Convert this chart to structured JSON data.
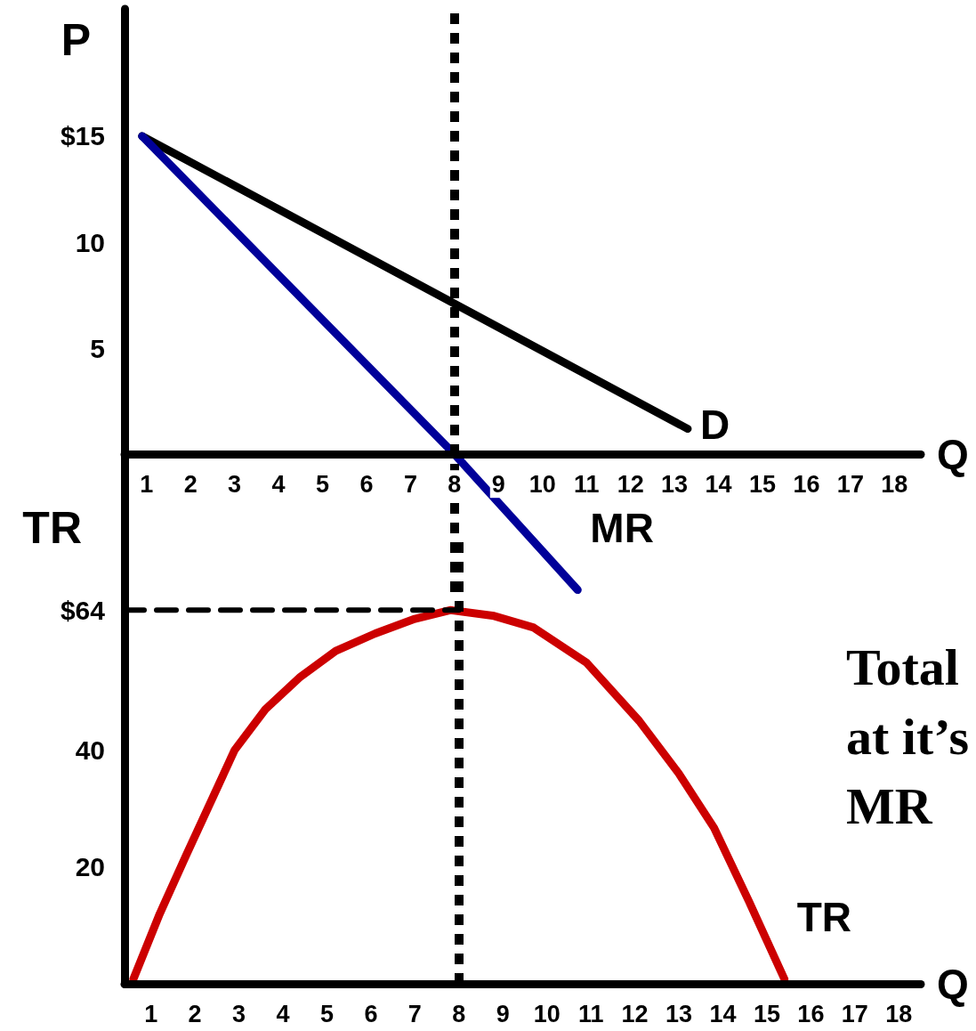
{
  "chart_data": [
    {
      "type": "line",
      "xlabel": "Q",
      "ylabel": "P",
      "xlim": [
        0.5,
        18.6
      ],
      "ylim": [
        -6.5,
        21
      ],
      "xticks": [
        1,
        2,
        3,
        4,
        5,
        6,
        7,
        8,
        9,
        10,
        11,
        12,
        13,
        14,
        15,
        16,
        17,
        18
      ],
      "yticks": [
        5,
        10,
        {
          "value": 15,
          "label": "$15"
        }
      ],
      "grid": false,
      "legend": false,
      "marker": "none",
      "ref_lines": [
        {
          "axis": "x",
          "value": 8,
          "color": "#000000",
          "line_style": "dotted"
        }
      ],
      "series": [
        {
          "name": "D",
          "color": "#000000",
          "x": [
            0.9,
            13.3
          ],
          "values": [
            15,
            1.2
          ]
        },
        {
          "name": "MR",
          "color": "#000099",
          "x": [
            0.9,
            8,
            10.8
          ],
          "values": [
            15,
            0,
            -6.4
          ]
        }
      ]
    },
    {
      "type": "line",
      "xlabel": "Q",
      "ylabel": "TR",
      "xlim": [
        0.4,
        18.5
      ],
      "ylim": [
        0,
        77
      ],
      "xticks": [
        1,
        2,
        3,
        4,
        5,
        6,
        7,
        8,
        9,
        10,
        11,
        12,
        13,
        14,
        15,
        16,
        17,
        18
      ],
      "yticks": [
        20,
        40,
        {
          "value": 64,
          "label": "$64"
        }
      ],
      "grid": false,
      "legend": false,
      "marker": "none",
      "ref_lines": [
        {
          "axis": "x",
          "value": 8,
          "color": "#000000",
          "line_style": "dotted"
        }
      ],
      "annotations": [
        "Total\nat it’s\nMR"
      ],
      "series": [
        {
          "name": "TR",
          "color": "#cc0000",
          "x": [
            0.6,
            1.2,
            1.8,
            2.9,
            3.6,
            4.4,
            5.2,
            6.1,
            7,
            7.8,
            8.8,
            9.7,
            10.9,
            12.1,
            13,
            13.8,
            14.6,
            15.4
          ],
          "values": [
            0.8,
            12,
            22,
            40,
            47,
            52.6,
            57,
            60,
            62.5,
            64,
            63,
            61,
            55,
            45,
            36,
            26.7,
            14,
            0.8
          ]
        },
        {
          "color": "#000000",
          "line_style": "dashed",
          "x": [
            0.4,
            8
          ],
          "values": [
            64,
            64
          ]
        }
      ]
    }
  ]
}
